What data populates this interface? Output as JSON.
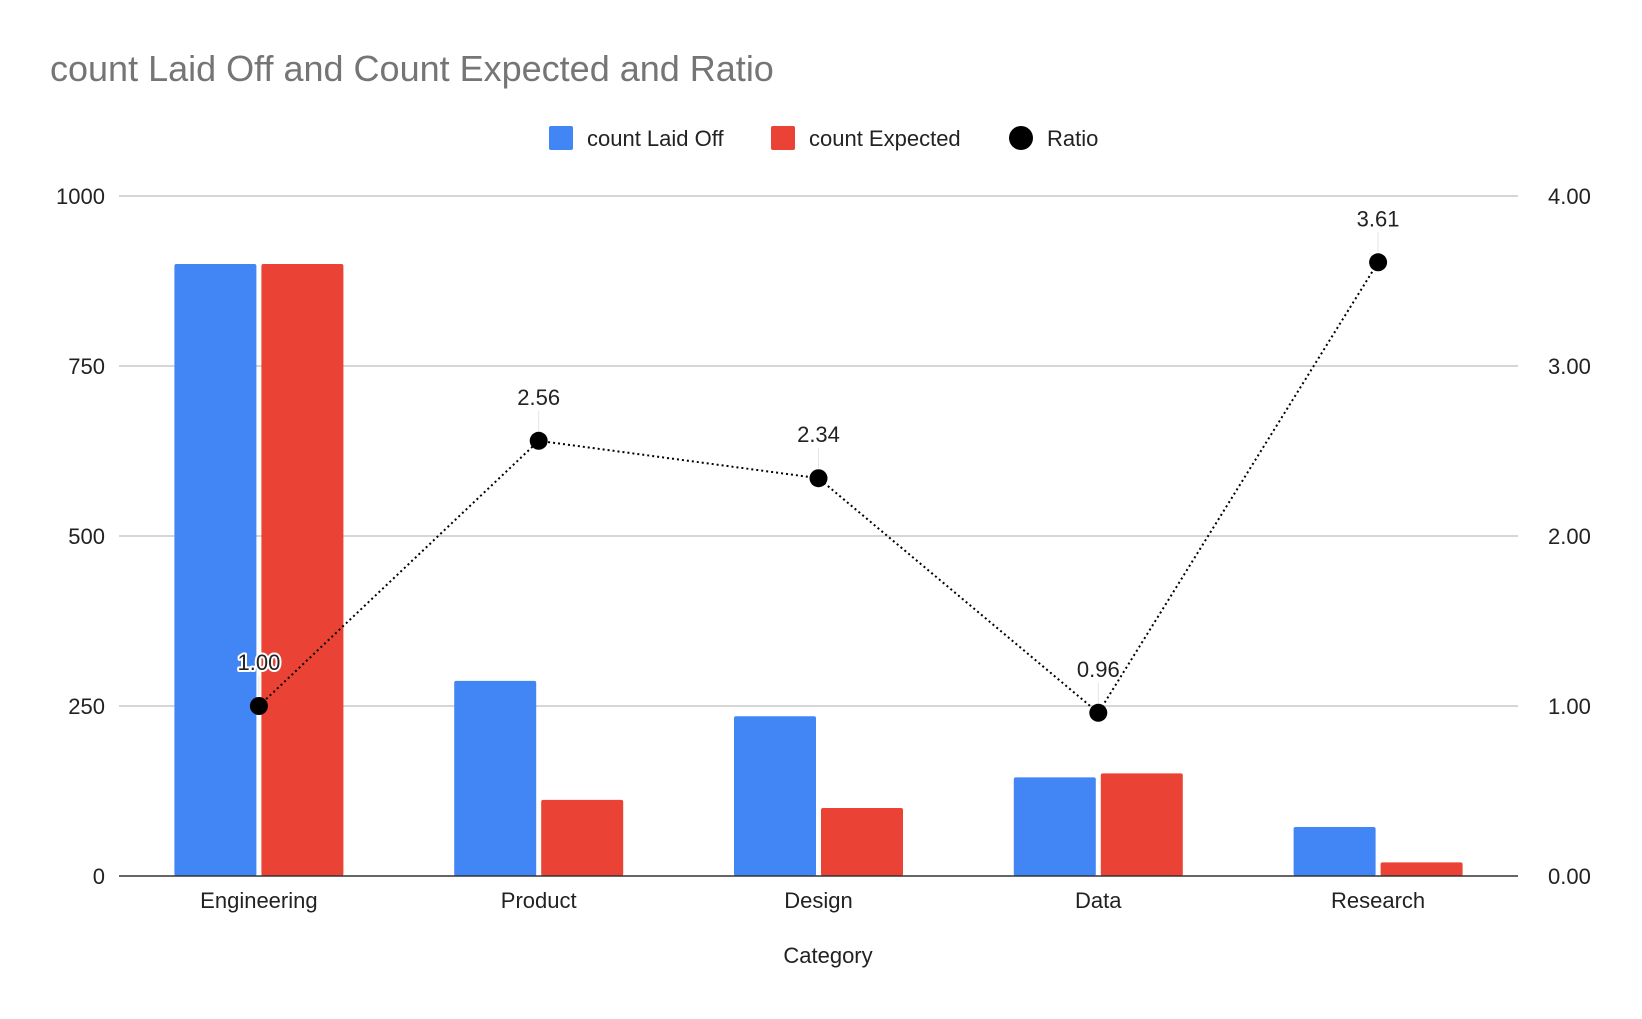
{
  "chart_data": {
    "type": "bar",
    "title": "count Laid Off and Count Expected and Ratio",
    "xlabel": "Category",
    "ylabel": "",
    "ylabel_right": "",
    "categories": [
      "Engineering",
      "Product",
      "Design",
      "Data",
      "Research"
    ],
    "series": [
      {
        "name": "count Laid Off",
        "type": "bar",
        "axis": "left",
        "color": "#4285f4",
        "values": [
          900,
          287,
          235,
          145,
          72
        ]
      },
      {
        "name": "count Expected",
        "type": "bar",
        "axis": "left",
        "color": "#ea4335",
        "values": [
          900,
          112,
          100,
          151,
          20
        ]
      },
      {
        "name": "Ratio",
        "type": "line",
        "style": "dotted",
        "marker": "circle",
        "axis": "right",
        "color": "#000000",
        "values": [
          1.0,
          2.56,
          2.34,
          0.96,
          3.61
        ],
        "labels": [
          "1.00",
          "2.56",
          "2.34",
          "0.96",
          "3.61"
        ]
      }
    ],
    "ylim": [
      0,
      1000
    ],
    "yticks": [
      "0",
      "250",
      "500",
      "750",
      "1000"
    ],
    "ylim_right": [
      0,
      4
    ],
    "yticks_right": [
      "0.00",
      "1.00",
      "2.00",
      "3.00",
      "4.00"
    ],
    "grid": true,
    "legend_position": "top"
  }
}
